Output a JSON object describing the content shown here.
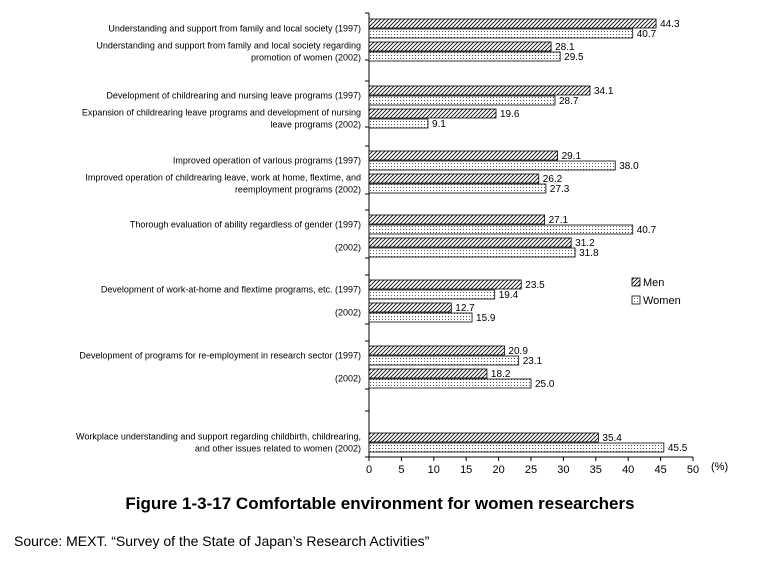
{
  "chart_data": {
    "type": "bar",
    "orientation": "horizontal",
    "title": "Figure 1-3-17 Comfortable environment for women researchers",
    "source": "Source: MEXT. “Survey of the State of Japan’s Research Activities”",
    "xlim": [
      0,
      50
    ],
    "xticks": [
      "0",
      "5",
      "10",
      "15",
      "20",
      "25",
      "30",
      "35",
      "40",
      "45",
      "50"
    ],
    "unit_label": "(%)",
    "legend_position": "right",
    "series": [
      {
        "name": "Men",
        "pattern": "diagonal-hatch"
      },
      {
        "name": "Women",
        "pattern": "dotted"
      }
    ],
    "groups": [
      {
        "label": [
          "Understanding and support from family and local society (1997)"
        ],
        "men": 44.3,
        "women": 40.7
      },
      {
        "label": [
          "Understanding and support from family and local society regarding",
          "promotion of women (2002)"
        ],
        "men": 28.1,
        "women": 29.5
      },
      {
        "label": [
          "Development of childrearing and nursing leave programs (1997)"
        ],
        "men": 34.1,
        "women": 28.7
      },
      {
        "label": [
          "Expansion of childrearing leave programs and development of nursing",
          "leave programs (2002)"
        ],
        "men": 19.6,
        "women": 9.1
      },
      {
        "label": [
          "Improved operation of various programs (1997)"
        ],
        "men": 29.1,
        "women": 38.0
      },
      {
        "label": [
          "Improved operation of childrearing leave, work at home, flextime, and",
          "reemployment programs (2002)"
        ],
        "men": 26.2,
        "women": 27.3
      },
      {
        "label": [
          "Thorough evaluation of ability regardless of gender (1997)"
        ],
        "men": 27.1,
        "women": 40.7
      },
      {
        "label": [
          "(2002)"
        ],
        "men": 31.2,
        "women": 31.8
      },
      {
        "label": [
          "Development of work-at-home and flextime programs, etc. (1997)"
        ],
        "men": 23.5,
        "women": 19.4
      },
      {
        "label": [
          "(2002)"
        ],
        "men": 12.7,
        "women": 15.9
      },
      {
        "label": [
          "Development of programs for re-employment in research sector (1997)"
        ],
        "men": 20.9,
        "women": 23.1
      },
      {
        "label": [
          "(2002)"
        ],
        "men": 18.2,
        "women": 25.0
      },
      {
        "label": [
          "Workplace understanding and support regarding childbirth, childrearing,",
          "and other issues related to women (2002)"
        ],
        "men": 35.4,
        "women": 45.5
      }
    ]
  }
}
